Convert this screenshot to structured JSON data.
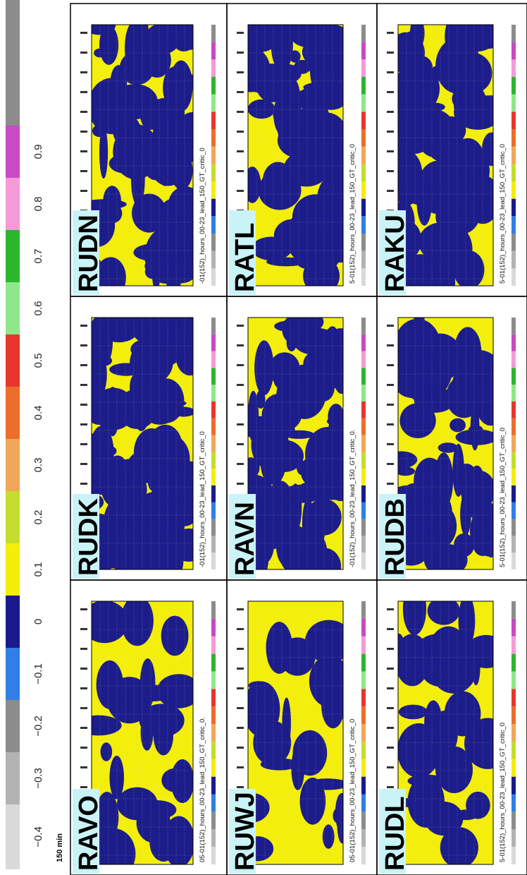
{
  "colorbar": {
    "caption": "150 min",
    "colors": [
      "#d9d9d9",
      "#b3b3b3",
      "#8c8c8c",
      "#2f7fe6",
      "#1a1a8c",
      "#f5ee0a",
      "#c4dd2e",
      "#f0a75a",
      "#ec6e2b",
      "#e8352e",
      "#8ee88a",
      "#2db52d",
      "#f59ad8",
      "#c84ac4",
      "#8c8c8c"
    ],
    "labels": [
      "−0.4",
      "−0.3",
      "−0.2",
      "−0.1",
      "0",
      "0.1",
      "0.2",
      "0.3",
      "0.4",
      "0.5",
      "0.6",
      "0.7",
      "0.8",
      "0.9"
    ]
  },
  "panels": [
    {
      "name": "RUDN",
      "title": "-01(152)_hours_00-23_lead_150_GT_critic_0"
    },
    {
      "name": "RATL",
      "title": "5-01(152)_hours_00-23_lead_150_GT_critic_0"
    },
    {
      "name": "RAKU",
      "title": "5-01(152)_hours_00-23_lead_150_GT_critic_0"
    },
    {
      "name": "RUDK",
      "title": "-01(152)_hours_00-23_lead_150_GT_critic_0"
    },
    {
      "name": "RAVN",
      "title": "-01(152)_hours_00-23_lead_150_GT_critic_0."
    },
    {
      "name": "RUDB",
      "title": "5-01(152)_hours_00-23_lead_150_GT_critic_0"
    },
    {
      "name": "RAVO",
      "title": "05-01(152)_hours_00-23_lead_150_GT_critic_0."
    },
    {
      "name": "RUWJ",
      "title": "05-01(152)_hours_00-23_lead_150_GT_critic_0"
    },
    {
      "name": "RUDL",
      "title": "5-01(152)_hours_00-23_lead_150_GT_critic_0"
    }
  ]
}
